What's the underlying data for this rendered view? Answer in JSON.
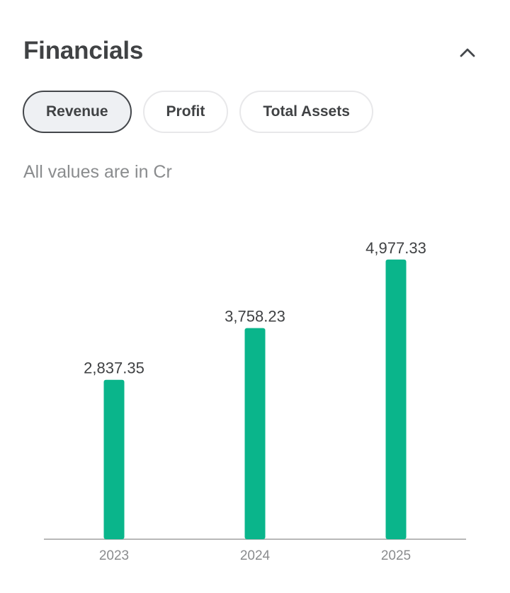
{
  "header": {
    "title": "Financials",
    "collapse_icon": "chevron-up-icon"
  },
  "tabs": [
    {
      "label": "Revenue",
      "active": true
    },
    {
      "label": "Profit",
      "active": false
    },
    {
      "label": "Total Assets",
      "active": false
    }
  ],
  "note": "All values are in Cr",
  "colors": {
    "bar": "#0ab58b",
    "axis": "#b8b8b8"
  },
  "chart_data": {
    "type": "bar",
    "categories": [
      "2023",
      "2024",
      "2025"
    ],
    "values": [
      2837.35,
      3758.23,
      4977.33
    ],
    "value_labels": [
      "2,837.35",
      "3,758.23",
      "4,977.33"
    ],
    "title": "",
    "xlabel": "",
    "ylabel": "",
    "ylim": [
      0,
      5200
    ],
    "grid": false
  }
}
